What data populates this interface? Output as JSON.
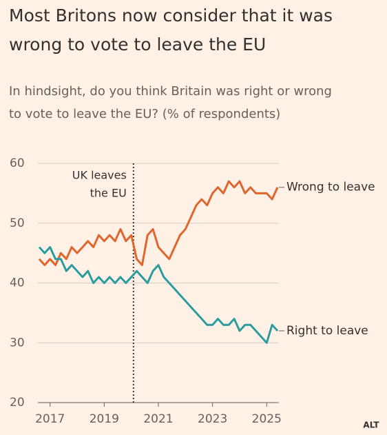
{
  "chart_data": {
    "type": "line",
    "title": [
      "Most Britons now consider that it was",
      "wrong to vote to leave the EU"
    ],
    "subtitle": [
      "In hindsight, do you think Britain was right or wrong",
      "to vote to leave the EU? (% of respondents)"
    ],
    "annotation": {
      "x": 2020.08,
      "text": [
        "UK leaves",
        "the EU"
      ]
    },
    "x": [
      2016.6,
      2016.8,
      2017.0,
      2017.2,
      2017.4,
      2017.6,
      2017.8,
      2018.0,
      2018.2,
      2018.4,
      2018.6,
      2018.8,
      2019.0,
      2019.2,
      2019.4,
      2019.6,
      2019.8,
      2020.0,
      2020.2,
      2020.4,
      2020.6,
      2020.8,
      2021.0,
      2021.2,
      2021.4,
      2021.6,
      2021.8,
      2022.0,
      2022.2,
      2022.4,
      2022.6,
      2022.8,
      2023.0,
      2023.2,
      2023.4,
      2023.6,
      2023.8,
      2024.0,
      2024.2,
      2024.4,
      2024.6,
      2024.8,
      2025.0,
      2025.2,
      2025.4
    ],
    "series": [
      {
        "name": "Wrong to leave",
        "color": "#e0652c",
        "values": [
          44,
          43,
          44,
          43,
          45,
          44,
          46,
          45,
          46,
          47,
          46,
          48,
          47,
          48,
          47,
          49,
          47,
          48,
          44,
          43,
          48,
          49,
          46,
          45,
          44,
          46,
          48,
          49,
          51,
          53,
          54,
          53,
          55,
          56,
          55,
          57,
          56,
          57,
          55,
          56,
          55,
          55,
          55,
          54,
          56
        ]
      },
      {
        "name": "Right to leave",
        "color": "#2a9ca0",
        "values": [
          46,
          45,
          46,
          44,
          44,
          42,
          43,
          42,
          41,
          42,
          40,
          41,
          40,
          41,
          40,
          41,
          40,
          41,
          42,
          41,
          40,
          42,
          43,
          41,
          40,
          39,
          38,
          37,
          36,
          35,
          34,
          33,
          33,
          34,
          33,
          33,
          34,
          32,
          33,
          33,
          32,
          31,
          30,
          33,
          32
        ]
      }
    ],
    "xlim": [
      2016.55,
      2025.45
    ],
    "xticks": [
      2017,
      2019,
      2021,
      2023,
      2025
    ],
    "ylim": [
      20,
      60
    ],
    "yticks": [
      20,
      30,
      40,
      50,
      60
    ],
    "grid": true
  },
  "alt_button": "ALT"
}
